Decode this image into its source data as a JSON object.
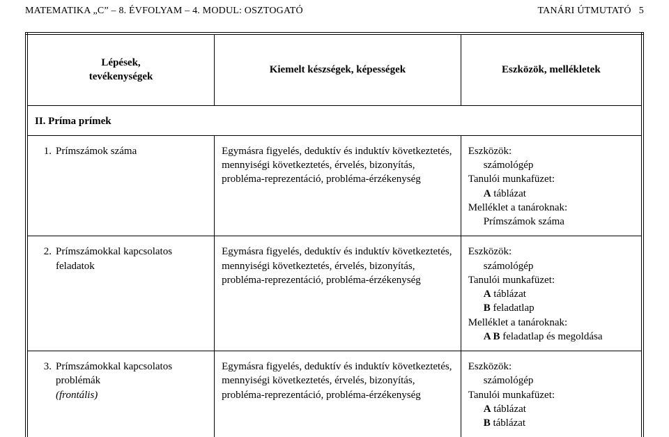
{
  "header": {
    "left": "MATEMATIKA „C” – 8. ÉVFOLYAM – 4. MODUL: OSZTOGATÓ",
    "right_label": "TANÁRI ÚTMUTATÓ",
    "right_page": "5"
  },
  "columns": {
    "c1_line1": "Lépések,",
    "c1_line2": "tevékenységek",
    "c2": "Kiemelt készségek, képességek",
    "c3": "Eszközök, mellékletek"
  },
  "section": {
    "title": "II. Príma prímek"
  },
  "rows": [
    {
      "num": "1.",
      "title": "Prímszámok száma",
      "title_italic": "",
      "col2": "Egymásra figyelés, deduktív és induktív következtetés, mennyiségi következtetés, érvelés, bizonyítás, probléma-reprezentáció, probléma-érzékenység",
      "col3_lines": [
        {
          "t": "Eszközök:",
          "b": false,
          "i": false,
          "ind": 0
        },
        {
          "t": "számológép",
          "b": false,
          "i": false,
          "ind": 1
        },
        {
          "t": "Tanulói munkafüzet:",
          "b": false,
          "i": false,
          "ind": 0
        },
        {
          "t": "A táblázat",
          "label_bold": "A",
          "rest": " táblázat",
          "ind": 1
        },
        {
          "t": "Melléklet a tanároknak:",
          "b": false,
          "i": false,
          "ind": 0
        },
        {
          "t": "Prímszámok száma",
          "b": false,
          "i": false,
          "ind": 1
        }
      ]
    },
    {
      "num": "2.",
      "title": "Prímszámokkal kapcsolatos feladatok",
      "title_italic": "",
      "col2": "Egymásra figyelés, deduktív és induktív következtetés, mennyiségi következtetés, érvelés, bizonyítás, probléma-reprezentáció, probléma-érzékenység",
      "col3_lines": [
        {
          "t": "Eszközök:",
          "ind": 0
        },
        {
          "t": "számológép",
          "ind": 1
        },
        {
          "t": "Tanulói munkafüzet:",
          "ind": 0
        },
        {
          "label_bold": "A",
          "rest": " táblázat",
          "ind": 1
        },
        {
          "label_bold": "B",
          "rest": " feladatlap",
          "ind": 1
        },
        {
          "t": "Melléklet a tanároknak:",
          "ind": 0
        },
        {
          "label_bold": "A B",
          "rest": " feladatlap és megoldása",
          "ind": 1
        }
      ]
    },
    {
      "num": "3.",
      "title": "Prímszámokkal kapcsolatos problémák",
      "title_italic": "(frontális)",
      "col2": "Egymásra figyelés, deduktív és induktív következtetés, mennyiségi következtetés, érvelés, bizonyítás, probléma-reprezentáció, probléma-érzékenység",
      "col3_lines": [
        {
          "t": "Eszközök:",
          "ind": 0
        },
        {
          "t": "számológép",
          "ind": 1
        },
        {
          "t": "Tanulói munkafüzet:",
          "ind": 0
        },
        {
          "label_bold": "A",
          "rest": " táblázat",
          "ind": 1
        },
        {
          "label_bold": "B",
          "rest": " táblázat",
          "ind": 1
        }
      ]
    }
  ]
}
